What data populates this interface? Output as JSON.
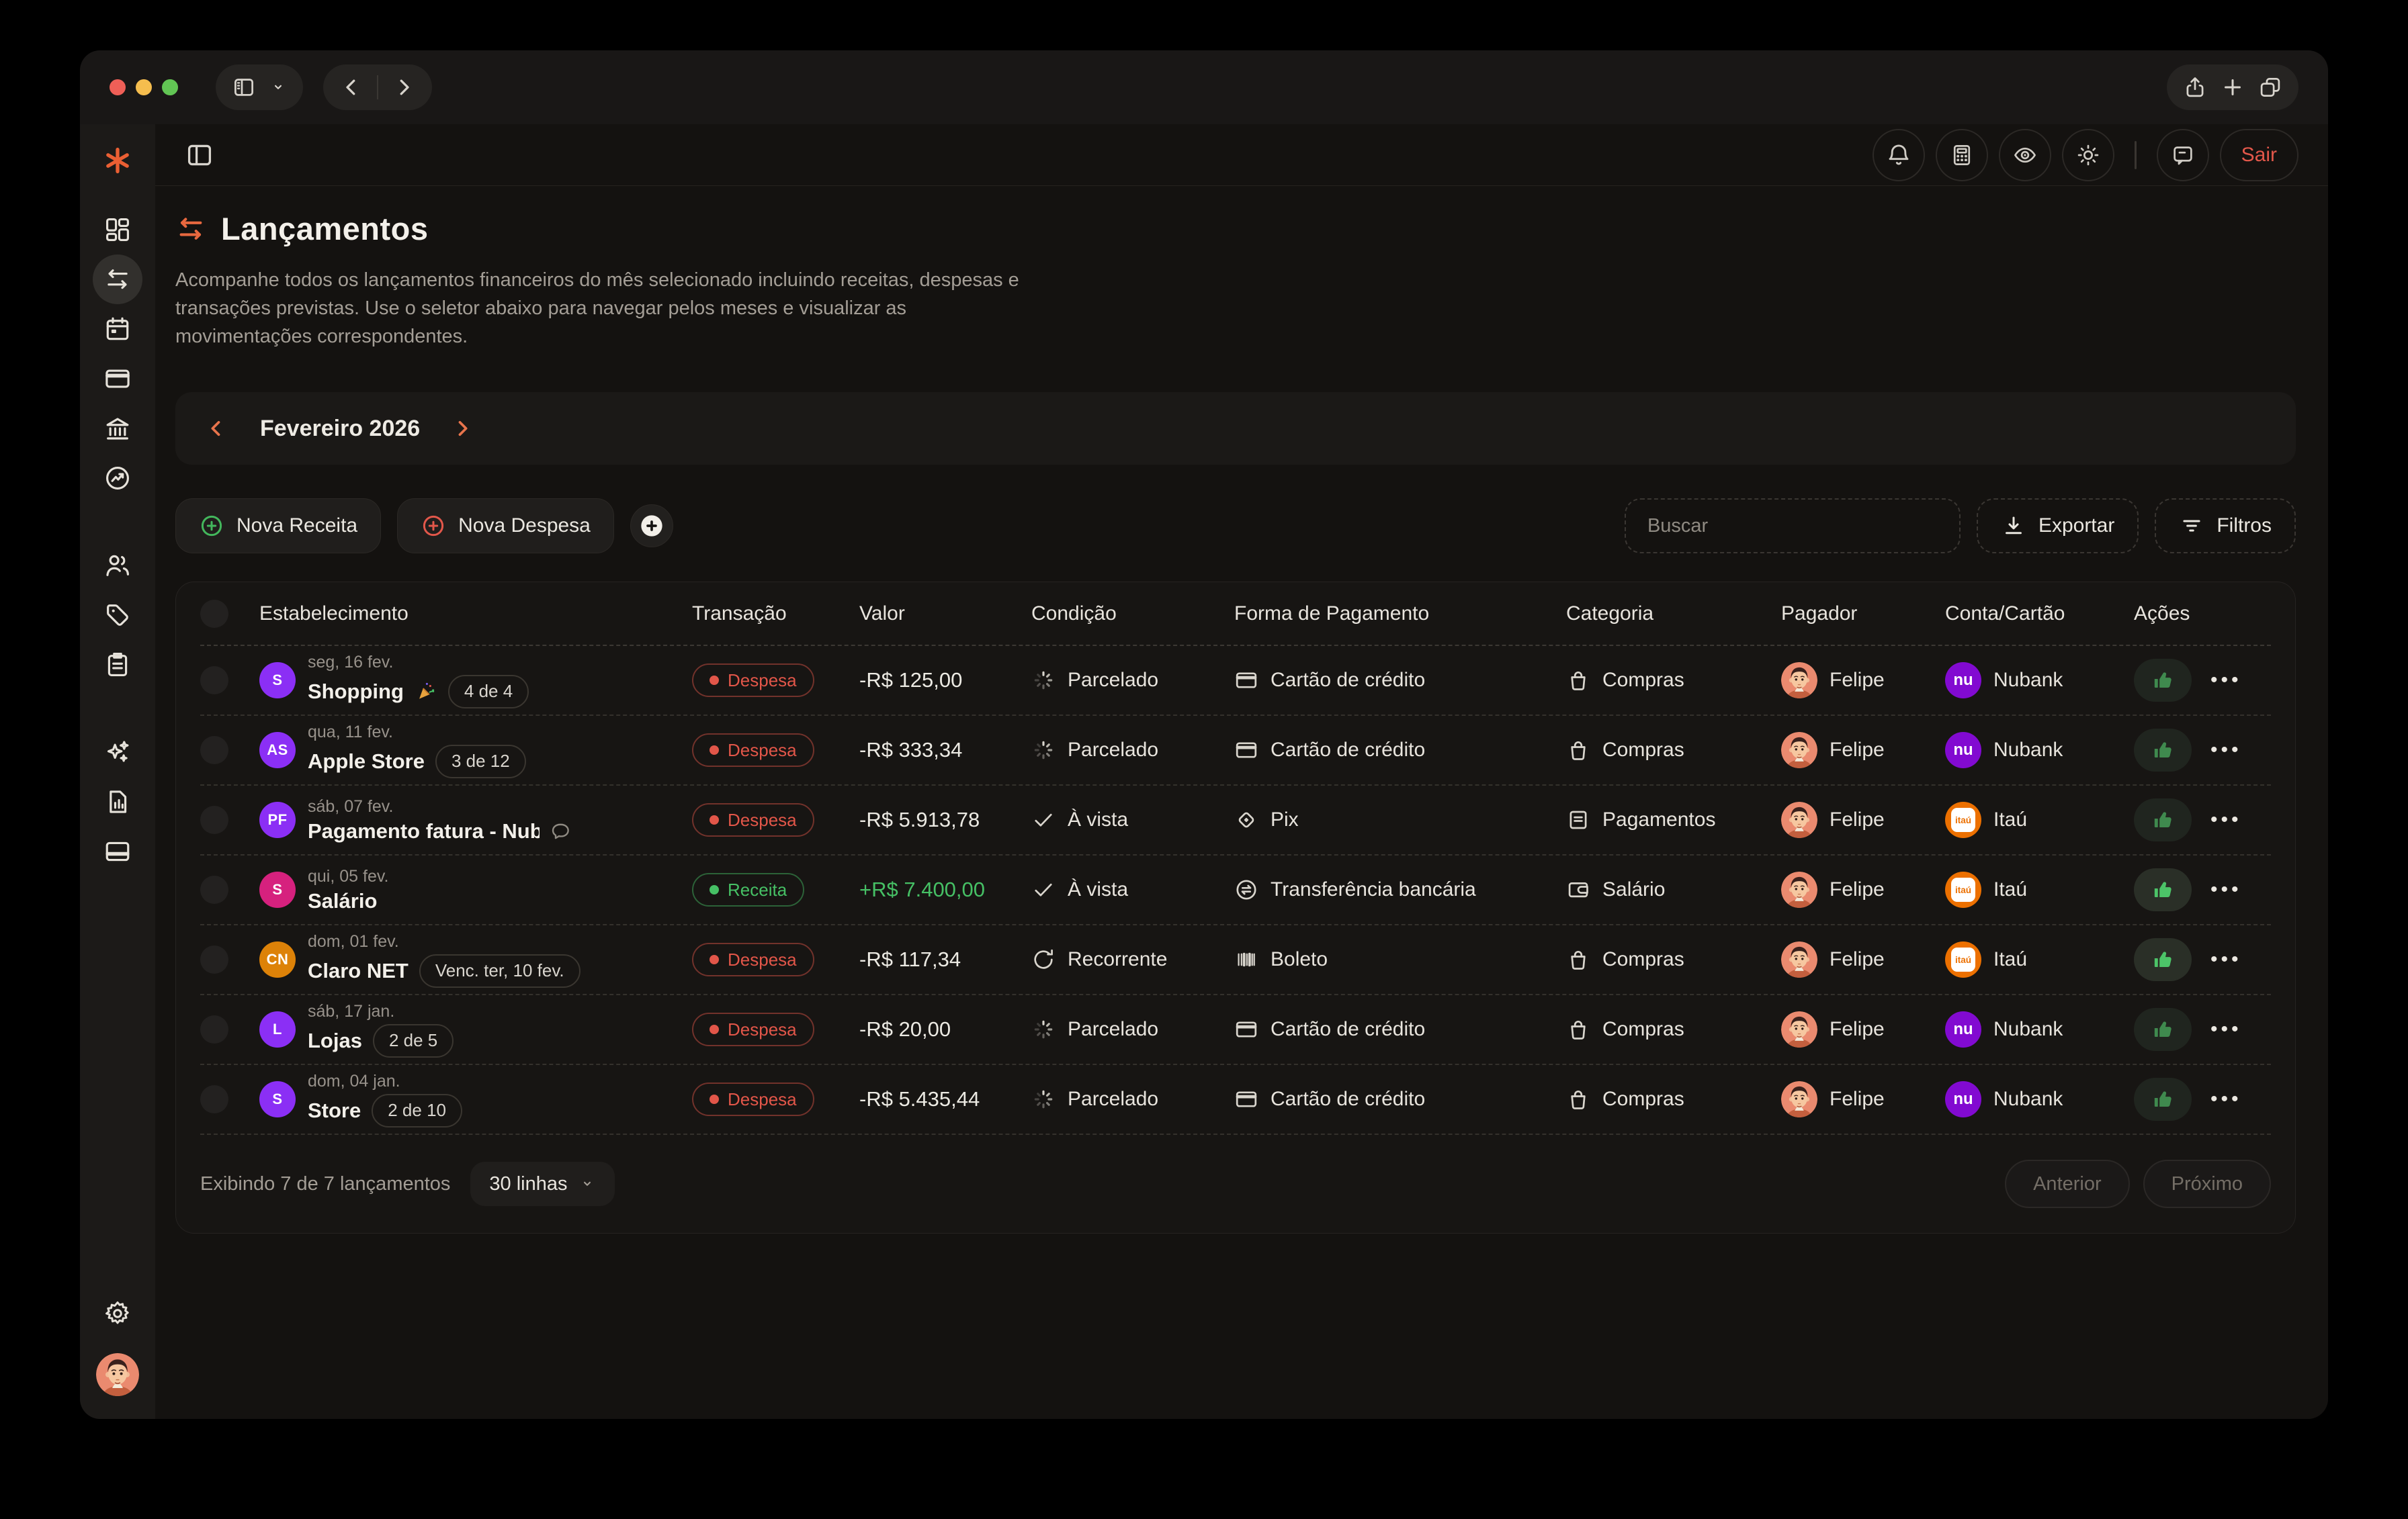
{
  "theme": {
    "accent_orange": "#e8683f",
    "danger_red": "#e2574a",
    "success_green": "#46c065",
    "nubank_purple": "#820ad1",
    "itau_orange": "#ec7000",
    "traffic_lights": [
      "#ef5f57",
      "#f5bd4e",
      "#62c554"
    ]
  },
  "titlebar": {
    "left_icons": [
      "sidebar-toggle-icon",
      "chevron-down-icon",
      "back-icon",
      "forward-icon"
    ],
    "right_icons": [
      "share-icon",
      "new-tab-icon",
      "tab-overview-icon"
    ]
  },
  "appbar": {
    "icons": [
      "notifications-bell-icon",
      "calculator-icon",
      "privacy-eye-icon",
      "theme-sun-icon",
      "feedback-chat-icon"
    ],
    "sair_label": "Sair"
  },
  "sidebar": {
    "logo": "asterisk-logo",
    "items": [
      {
        "id": "dashboard",
        "icon": "dashboard"
      },
      {
        "id": "transactions",
        "icon": "transactions",
        "active": true
      },
      {
        "id": "calendar",
        "icon": "calendar"
      },
      {
        "id": "cards",
        "icon": "card"
      },
      {
        "id": "bank",
        "icon": "bank"
      },
      {
        "id": "performance",
        "icon": "performance"
      },
      {
        "id": "members",
        "icon": "members",
        "gap": true
      },
      {
        "id": "tags",
        "icon": "tags"
      },
      {
        "id": "planner",
        "icon": "planner"
      },
      {
        "id": "assistant",
        "icon": "assistant",
        "gap": true
      },
      {
        "id": "reports",
        "icon": "reports"
      },
      {
        "id": "wallet",
        "icon": "wallet"
      }
    ]
  },
  "page": {
    "title": "Lançamentos",
    "description": "Acompanhe todos os lançamentos financeiros do mês selecionado incluindo receitas, despesas e transações previstas. Use o seletor abaixo para navegar pelos meses e visualizar as movimentações correspondentes.",
    "month_label": "Fevereiro 2026",
    "new_income_label": "Nova Receita",
    "new_expense_label": "Nova Despesa",
    "search_placeholder": "Buscar",
    "export_label": "Exportar",
    "filters_label": "Filtros"
  },
  "table": {
    "columns": [
      "Estabelecimento",
      "Transação",
      "Valor",
      "Condição",
      "Forma de Pagamento",
      "Categoria",
      "Pagador",
      "Conta/Cartão",
      "Ações"
    ],
    "rows": [
      {
        "initials": "S",
        "avatar_color": "#8b2ff5",
        "date": "seg, 16 fev.",
        "name": "Shopping",
        "celebration": true,
        "badge": "4 de 4",
        "type": "Despesa",
        "value": "-R$ 125,00",
        "positive": false,
        "condition": "Parcelado",
        "condition_icon": "spinner",
        "payment": "Cartão de crédito",
        "payment_icon": "card",
        "category": "Compras",
        "category_icon": "bag",
        "payer": "Felipe",
        "account": "Nubank",
        "account_logo": "nubank",
        "approved_highlight": false
      },
      {
        "initials": "AS",
        "avatar_color": "#8b2ff5",
        "date": "qua, 11 fev.",
        "name": "Apple Store",
        "badge": "3 de 12",
        "type": "Despesa",
        "value": "-R$ 333,34",
        "positive": false,
        "condition": "Parcelado",
        "condition_icon": "spinner",
        "payment": "Cartão de crédito",
        "payment_icon": "card",
        "category": "Compras",
        "category_icon": "bag",
        "payer": "Felipe",
        "account": "Nubank",
        "account_logo": "nubank",
        "approved_highlight": false
      },
      {
        "initials": "PF",
        "avatar_color": "#8b2ff5",
        "date": "sáb, 07 fev.",
        "name": "Pagamento fatura - Nuba",
        "has_comment": true,
        "type": "Despesa",
        "value": "-R$ 5.913,78",
        "positive": false,
        "condition": "À vista",
        "condition_icon": "check",
        "payment": "Pix",
        "payment_icon": "pix",
        "category": "Pagamentos",
        "category_icon": "receipt",
        "payer": "Felipe",
        "account": "Itaú",
        "account_logo": "itau",
        "approved_highlight": false
      },
      {
        "initials": "S",
        "avatar_color": "#d6217e",
        "date": "qui, 05 fev.",
        "name": "Salário",
        "type": "Receita",
        "value": "+R$ 7.400,00",
        "positive": true,
        "condition": "À vista",
        "condition_icon": "check",
        "payment": "Transferência bancária",
        "payment_icon": "transfer",
        "category": "Salário",
        "category_icon": "wallet",
        "payer": "Felipe",
        "account": "Itaú",
        "account_logo": "itau",
        "approved_highlight": true
      },
      {
        "initials": "CN",
        "avatar_color": "#dd8208",
        "date": "dom, 01 fev.",
        "name": "Claro NET",
        "badge": "Venc. ter, 10 fev.",
        "type": "Despesa",
        "value": "-R$ 117,34",
        "positive": false,
        "condition": "Recorrente",
        "condition_icon": "recurring",
        "payment": "Boleto",
        "payment_icon": "barcode",
        "category": "Compras",
        "category_icon": "bag",
        "payer": "Felipe",
        "account": "Itaú",
        "account_logo": "itau",
        "approved_highlight": true
      },
      {
        "initials": "L",
        "avatar_color": "#8b2ff5",
        "date": "sáb, 17 jan.",
        "name": "Lojas",
        "badge": "2 de 5",
        "type": "Despesa",
        "value": "-R$ 20,00",
        "positive": false,
        "condition": "Parcelado",
        "condition_icon": "spinner",
        "payment": "Cartão de crédito",
        "payment_icon": "card",
        "category": "Compras",
        "category_icon": "bag",
        "payer": "Felipe",
        "account": "Nubank",
        "account_logo": "nubank",
        "approved_highlight": false
      },
      {
        "initials": "S",
        "avatar_color": "#8b2ff5",
        "date": "dom, 04 jan.",
        "name": "Store",
        "badge": "2 de 10",
        "type": "Despesa",
        "value": "-R$ 5.435,44",
        "positive": false,
        "condition": "Parcelado",
        "condition_icon": "spinner",
        "payment": "Cartão de crédito",
        "payment_icon": "card",
        "category": "Compras",
        "category_icon": "bag",
        "payer": "Felipe",
        "account": "Nubank",
        "account_logo": "nubank",
        "approved_highlight": false
      }
    ]
  },
  "footer": {
    "summary": "Exibindo 7 de 7 lançamentos",
    "rows_per_page": "30 linhas",
    "prev_label": "Anterior",
    "next_label": "Próximo"
  }
}
